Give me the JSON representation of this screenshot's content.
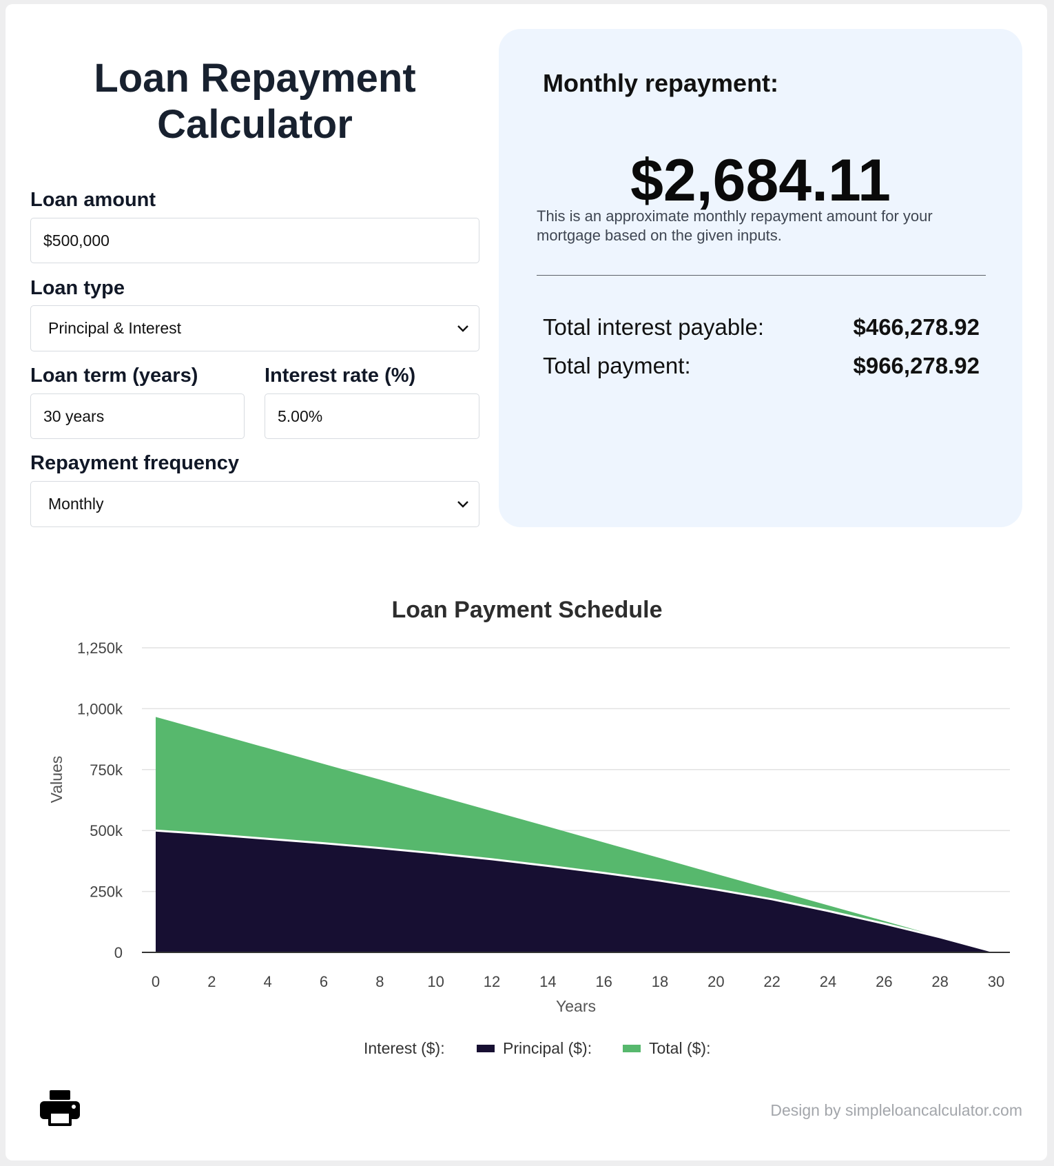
{
  "calculator": {
    "title_line1": "Loan Repayment",
    "title_line2": "Calculator",
    "loan_amount_label": "Loan amount",
    "loan_amount_value": "$500,000",
    "loan_type_label": "Loan type",
    "loan_type_value": "Principal & Interest",
    "loan_term_label": "Loan term (years)",
    "loan_term_value": "30 years",
    "interest_rate_label": "Interest rate (%)",
    "interest_rate_value": "5.00%",
    "frequency_label": "Repayment frequency",
    "frequency_value": "Monthly"
  },
  "results": {
    "monthly_label": "Monthly repayment:",
    "monthly_amount": "$2,684.11",
    "note": "This is an approximate monthly repayment amount for your mortgage based on the given inputs.",
    "total_interest_label": "Total interest payable:",
    "total_interest_value": "$466,278.92",
    "total_payment_label": "Total payment:",
    "total_payment_value": "$966,278.92"
  },
  "chart_data": {
    "type": "area",
    "title": "Loan Payment Schedule",
    "xlabel": "Years",
    "ylabel": "Values",
    "x": [
      0,
      2,
      4,
      6,
      8,
      10,
      12,
      14,
      16,
      18,
      20,
      22,
      24,
      26,
      28,
      30
    ],
    "xlim": [
      0,
      30
    ],
    "ylim": [
      0,
      1250000
    ],
    "y_ticks": [
      "0",
      "250k",
      "500k",
      "750k",
      "1,000k",
      "1,250k"
    ],
    "x_ticks": [
      "0",
      "2",
      "4",
      "6",
      "8",
      "10",
      "12",
      "14",
      "16",
      "18",
      "20",
      "22",
      "24",
      "26",
      "28",
      "30"
    ],
    "grid": true,
    "legend_position": "bottom",
    "series": [
      {
        "name": "Interest ($):",
        "color": "#ffffff",
        "values": [
          0,
          0,
          0,
          0,
          0,
          0,
          0,
          0,
          0,
          0,
          0,
          0,
          0,
          0,
          0,
          0
        ]
      },
      {
        "name": "Principal ($):",
        "color": "#170f32",
        "values": [
          500000,
          484000,
          466000,
          448000,
          428000,
          406000,
          382000,
          355000,
          326000,
          294000,
          258000,
          218000,
          170000,
          118000,
          62000,
          0
        ]
      },
      {
        "name": "Total ($):",
        "color": "#57b86d",
        "values": [
          966279,
          902000,
          838000,
          773000,
          709000,
          644000,
          580000,
          516000,
          451000,
          387000,
          322000,
          258000,
          193000,
          129000,
          64000,
          0
        ]
      }
    ]
  },
  "footer": {
    "credit": "Design by simpleloancalculator.com",
    "print_icon": "printer-icon"
  }
}
